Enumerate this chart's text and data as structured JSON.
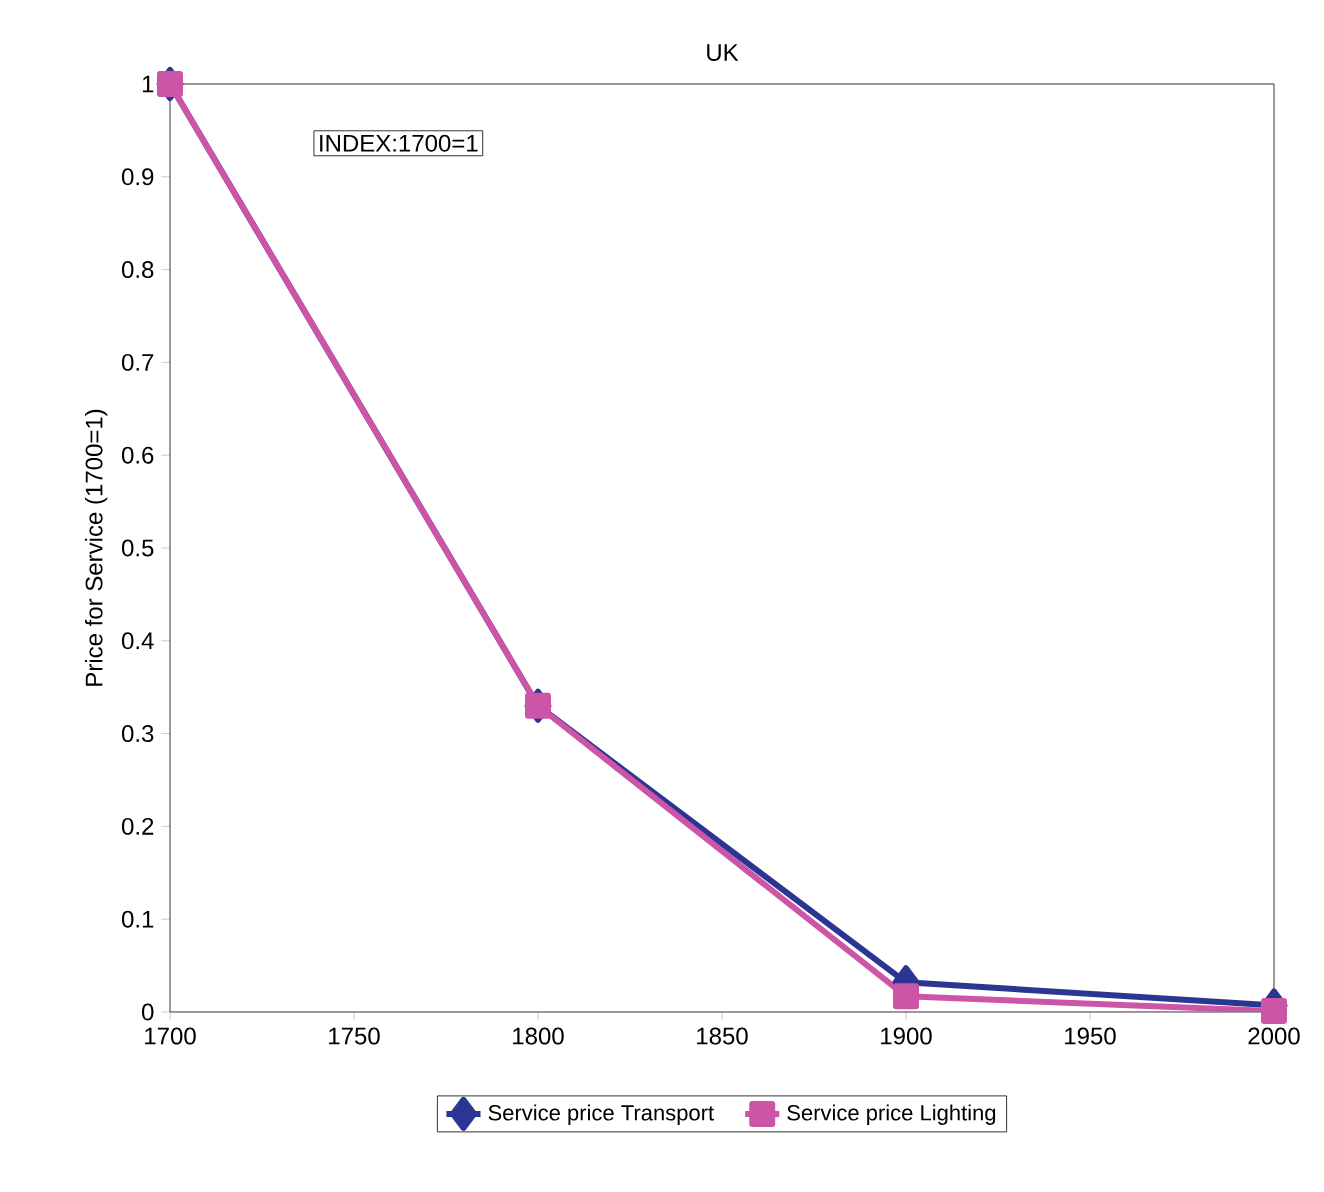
{
  "chart_data": {
    "type": "line",
    "title": "UK",
    "ylabel": "Price for Service (1700=1)",
    "annotations": [
      "INDEX:1700=1"
    ],
    "x": [
      1700,
      1800,
      1900,
      2000
    ],
    "series": [
      {
        "name": "Service price Transport",
        "color": "#2b3592",
        "values": [
          1,
          0.33,
          0.032,
          0.007
        ],
        "marker": "diamond"
      },
      {
        "name": "Service price Lighting",
        "color": "#cc55a8",
        "values": [
          1,
          0.33,
          0.017,
          0.001
        ],
        "marker": "square"
      }
    ],
    "xlim": [
      1700,
      2000
    ],
    "xticks": [
      1700,
      1750,
      1800,
      1850,
      1900,
      1950,
      2000
    ],
    "ylim": [
      0,
      1
    ],
    "yticks": [
      0,
      0.1,
      0.2,
      0.3,
      0.4,
      0.5,
      0.6,
      0.7,
      0.8,
      0.9,
      1
    ],
    "grid": false,
    "legend": "bottom",
    "line_style": "solid"
  }
}
